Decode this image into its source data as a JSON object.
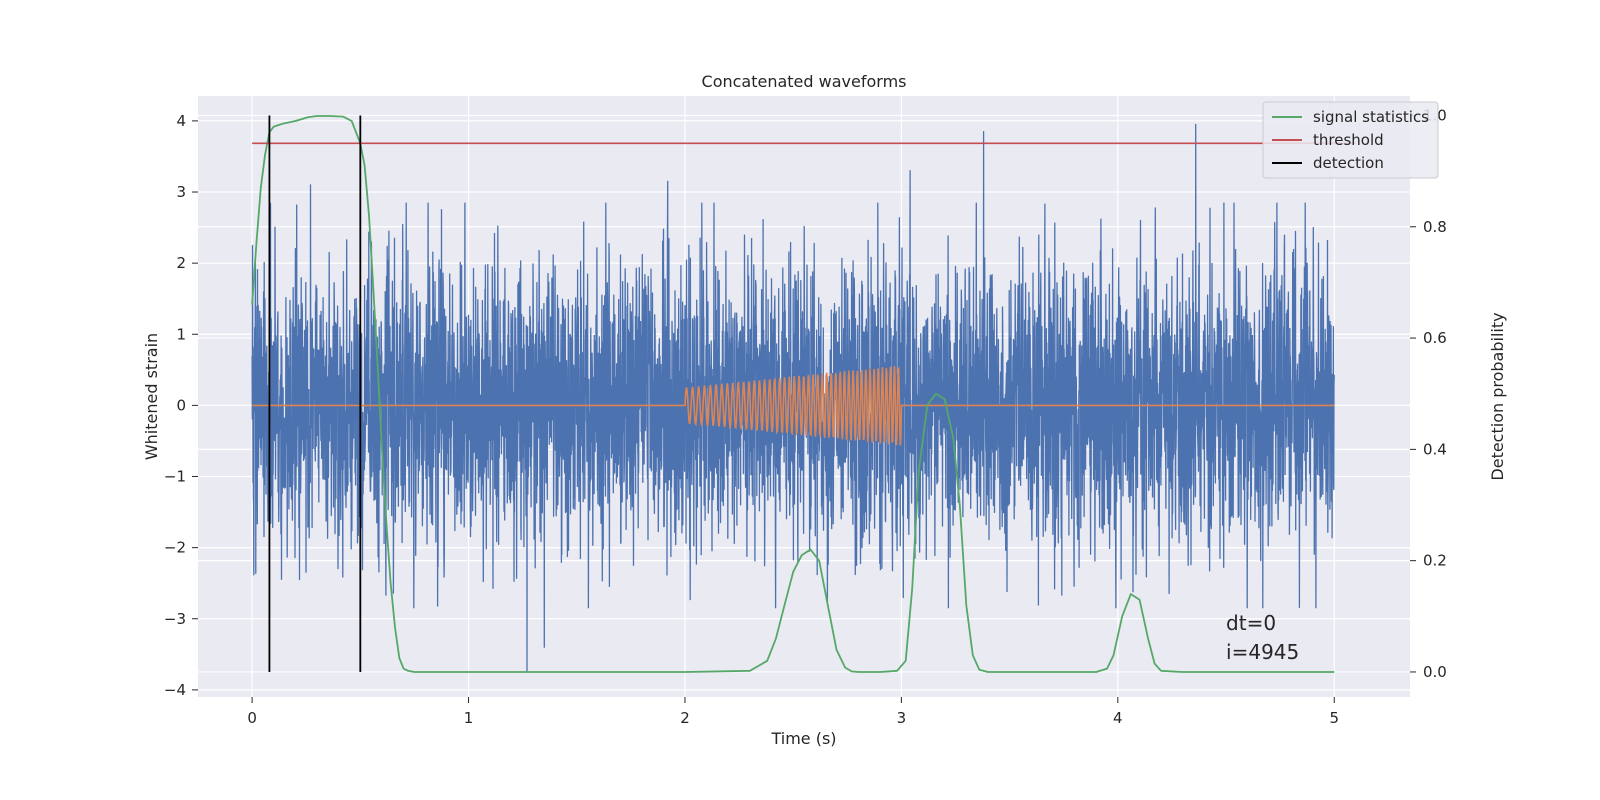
{
  "chart_data": {
    "type": "line",
    "title": "Concatenated waveforms",
    "xlabel": "Time (s)",
    "ylabel": "Whitened strain",
    "y2label": "Detection probability",
    "xlim": [
      -0.25,
      5.35
    ],
    "ylim": [
      -4.1,
      4.35
    ],
    "y2lim": [
      -0.045,
      1.035
    ],
    "xticks": [
      0,
      1,
      2,
      3,
      4,
      5
    ],
    "yticks": [
      -4,
      -3,
      -2,
      -1,
      0,
      1,
      2,
      3,
      4
    ],
    "y2ticks": [
      0.0,
      0.2,
      0.4,
      0.6,
      0.8,
      1.0
    ],
    "grid": true,
    "legend_position": "top-right",
    "colors": {
      "background": "#eaeaf2",
      "noise": "#4c72b0",
      "injection": "#dd8452",
      "signal_statistics": "#55a868",
      "threshold": "#c44e52",
      "detection": "#000000"
    },
    "series": [
      {
        "key": "noise",
        "axis": "left",
        "x_range": [
          0,
          5
        ],
        "amplitude_typical": 1.0,
        "amplitude_max": 3.95,
        "notable_extremes": [
          {
            "x": 1.27,
            "y": -3.75
          },
          {
            "x": 1.35,
            "y": -3.4
          },
          {
            "x": 3.38,
            "y": 3.85
          },
          {
            "x": 4.36,
            "y": 3.95
          },
          {
            "x": 0.27,
            "y": 3.1
          },
          {
            "x": 1.92,
            "y": 3.15
          },
          {
            "x": 3.04,
            "y": 3.3
          }
        ]
      },
      {
        "key": "injection",
        "axis": "left",
        "x": [
          0,
          2,
          3,
          5
        ],
        "y": [
          0,
          0,
          0,
          0
        ],
        "chirp": {
          "start": 2.0,
          "end": 3.0,
          "amp_start": 0.25,
          "amp_end": 0.57,
          "cycles": 45
        }
      },
      {
        "key": "signal_statistics",
        "axis": "right",
        "name": "signal statistics",
        "x": [
          0.0,
          0.02,
          0.04,
          0.06,
          0.08,
          0.1,
          0.14,
          0.2,
          0.26,
          0.3,
          0.36,
          0.42,
          0.46,
          0.48,
          0.5,
          0.52,
          0.54,
          0.56,
          0.58,
          0.6,
          0.62,
          0.64,
          0.66,
          0.68,
          0.7,
          0.72,
          0.75,
          0.8,
          1.0,
          1.5,
          2.0,
          2.3,
          2.38,
          2.42,
          2.46,
          2.5,
          2.54,
          2.58,
          2.62,
          2.66,
          2.7,
          2.74,
          2.77,
          2.8,
          2.9,
          2.98,
          3.02,
          3.05,
          3.08,
          3.12,
          3.16,
          3.2,
          3.24,
          3.27,
          3.3,
          3.33,
          3.36,
          3.4,
          3.6,
          3.9,
          3.95,
          3.98,
          4.02,
          4.06,
          4.1,
          4.14,
          4.17,
          4.2,
          4.3,
          4.6,
          5.0
        ],
        "y": [
          0.66,
          0.77,
          0.87,
          0.93,
          0.97,
          0.98,
          0.985,
          0.99,
          0.997,
          0.999,
          0.999,
          0.998,
          0.99,
          0.97,
          0.95,
          0.91,
          0.82,
          0.69,
          0.55,
          0.4,
          0.27,
          0.16,
          0.08,
          0.025,
          0.006,
          0.002,
          0.0,
          0.0,
          0.0,
          0.0,
          0.0,
          0.002,
          0.02,
          0.06,
          0.12,
          0.18,
          0.21,
          0.22,
          0.2,
          0.12,
          0.04,
          0.008,
          0.001,
          0.0,
          0.0,
          0.002,
          0.02,
          0.15,
          0.36,
          0.48,
          0.5,
          0.49,
          0.42,
          0.3,
          0.12,
          0.03,
          0.004,
          0.0,
          0.0,
          0.0,
          0.006,
          0.03,
          0.1,
          0.14,
          0.13,
          0.06,
          0.015,
          0.002,
          0.0,
          0.0,
          0.0
        ]
      },
      {
        "key": "threshold",
        "axis": "right",
        "name": "threshold",
        "x": [
          0,
          5.1
        ],
        "y": [
          0.95,
          0.95
        ]
      },
      {
        "key": "detection",
        "axis": "right",
        "name": "detection",
        "vertical_lines_x": [
          0.08,
          0.5
        ],
        "y_range": [
          0.0,
          1.0
        ]
      }
    ],
    "legend": [
      "signal statistics",
      "threshold",
      "detection"
    ],
    "annotations": [
      "dt=0",
      "i=4945"
    ]
  }
}
